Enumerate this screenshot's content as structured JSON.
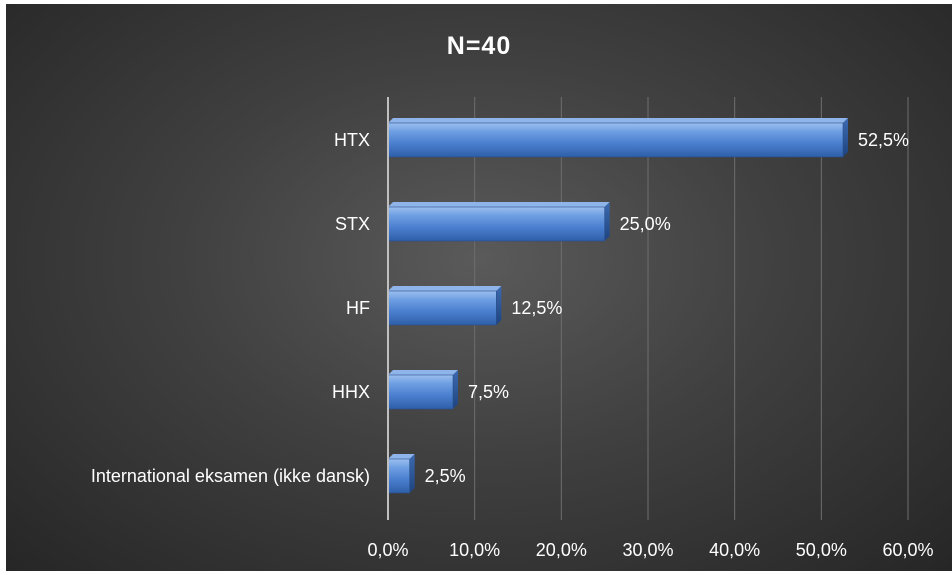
{
  "chart_data": {
    "type": "bar",
    "orientation": "horizontal",
    "title": "N=40",
    "categories": [
      "HTX",
      "STX",
      "HF",
      "HHX",
      "International eksamen (ikke dansk)"
    ],
    "values": [
      52.5,
      25.0,
      12.5,
      7.5,
      2.5
    ],
    "data_labels": [
      "52,5%",
      "25,0%",
      "12,5%",
      "7,5%",
      "2,5%"
    ],
    "xlim": [
      0,
      60
    ],
    "xticks": [
      0,
      10,
      20,
      30,
      40,
      50,
      60
    ],
    "xtick_labels": [
      "0,0%",
      "10,0%",
      "20,0%",
      "30,0%",
      "40,0%",
      "50,0%",
      "60,0%"
    ],
    "xlabel": "",
    "ylabel": "",
    "grid": true,
    "legend": "none",
    "bar_color": "#4a7fcf",
    "background_color": "#3c3c3c"
  }
}
